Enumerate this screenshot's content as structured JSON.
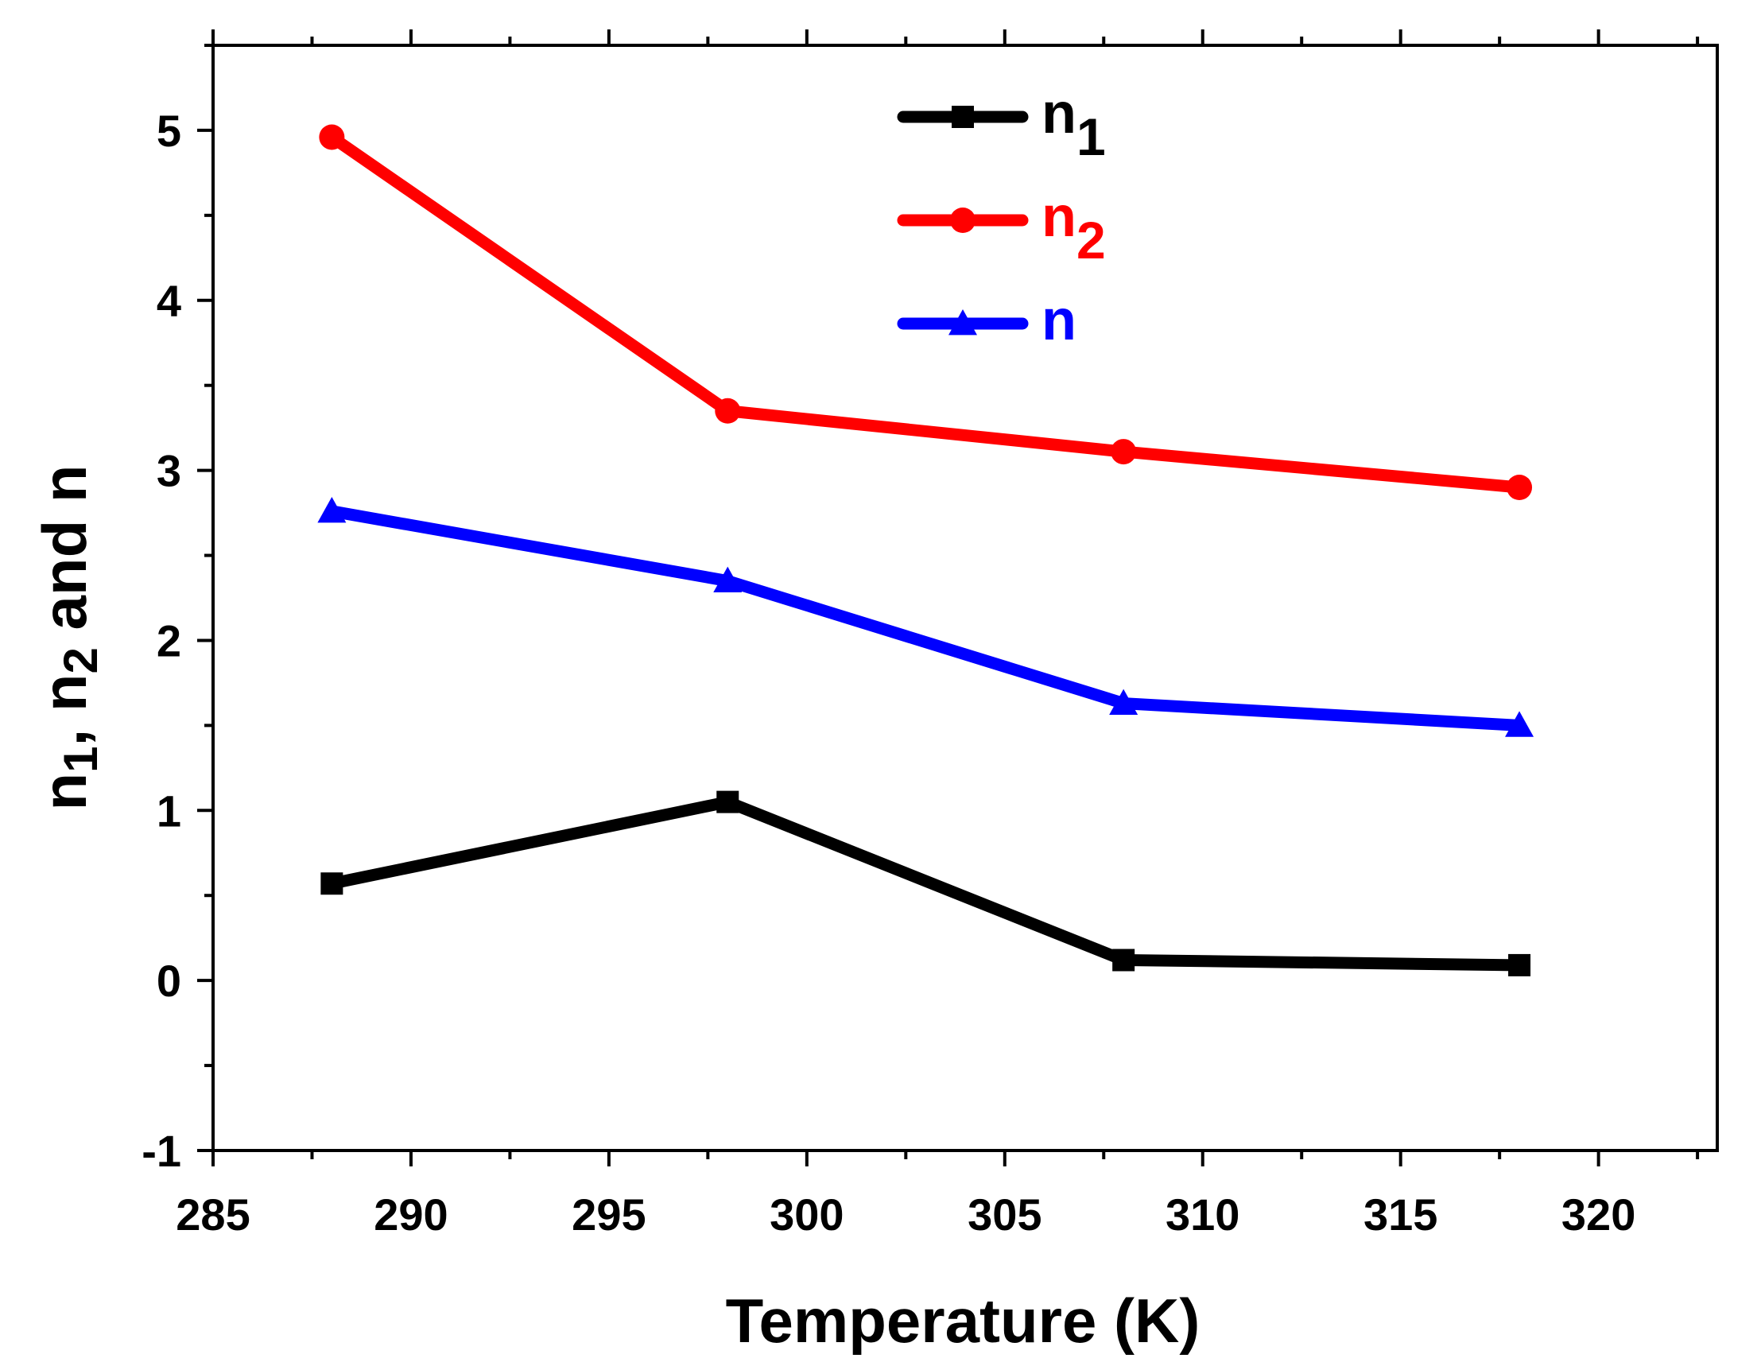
{
  "chart_data": {
    "type": "line",
    "title": "",
    "xlabel": "Temperature (K)",
    "ylabel": {
      "p1": "n",
      "s1": "1",
      "p2": ", n",
      "s2": "2",
      "p3": " and n"
    },
    "xlim": [
      285,
      323
    ],
    "ylim": [
      -1,
      5.5
    ],
    "xticks": [
      285,
      290,
      295,
      300,
      305,
      310,
      315,
      320
    ],
    "xtick_labels": [
      "285",
      "290",
      "295",
      "300",
      "305",
      "310",
      "315",
      "320"
    ],
    "yticks": [
      -1,
      0,
      1,
      2,
      3,
      4,
      5
    ],
    "ytick_labels": [
      "-1",
      "0",
      "1",
      "2",
      "3",
      "4",
      "5"
    ],
    "grid": false,
    "legend_position": "top-center",
    "x": [
      288,
      298,
      308,
      318
    ],
    "series": [
      {
        "name": "n",
        "sub": "1",
        "color": "#000000",
        "marker": "square",
        "values": [
          0.57,
          1.05,
          0.12,
          0.09
        ]
      },
      {
        "name": "n",
        "sub": "2",
        "color": "#ff0000",
        "marker": "circle",
        "values": [
          4.96,
          3.35,
          3.11,
          2.9
        ]
      },
      {
        "name": "n",
        "sub": "",
        "color": "#0000ff",
        "marker": "triangle",
        "values": [
          2.76,
          2.35,
          1.63,
          1.5
        ]
      }
    ]
  }
}
